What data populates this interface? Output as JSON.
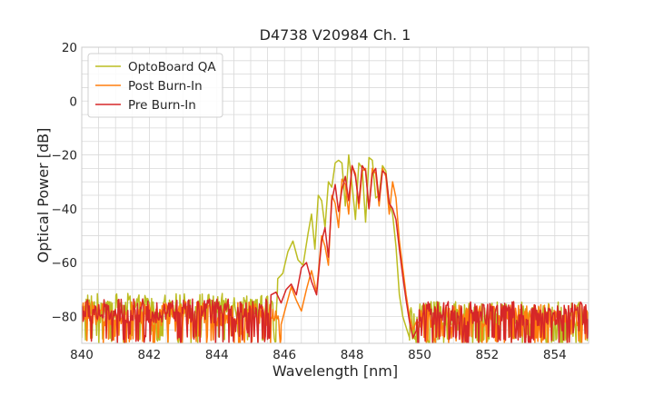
{
  "chart_data": {
    "type": "line",
    "title": "D4738 V20984 Ch. 1",
    "xlabel": "Wavelength [nm]",
    "ylabel": "Optical Power [dB]",
    "xlim": [
      840,
      855
    ],
    "ylim": [
      -90,
      20
    ],
    "x_ticks": [
      840,
      842,
      844,
      846,
      848,
      850,
      852,
      854
    ],
    "y_ticks": [
      20,
      0,
      -20,
      -40,
      -60,
      -80
    ],
    "x_tick_labels": [
      "840",
      "842",
      "844",
      "846",
      "848",
      "850",
      "852",
      "854"
    ],
    "y_tick_labels": [
      "20",
      "0",
      "−20",
      "−40",
      "−60",
      "−80"
    ],
    "x_minor_step": 0.5,
    "y_minor_step": 5,
    "grid": true,
    "legend_position": "top-left",
    "series": [
      {
        "name": "OptoBoard QA",
        "color": "#bcbd22",
        "noise_floor": {
          "x_start": 840.0,
          "x_end": 845.8,
          "mean": -76,
          "min_dip": -90
        },
        "noise_floor_right": {
          "x_start": 849.7,
          "x_end": 855.0,
          "mean": -79,
          "min_dip": -90
        },
        "x": [
          845.8,
          845.95,
          846.1,
          846.25,
          846.4,
          846.55,
          846.7,
          846.8,
          846.9,
          847.0,
          847.1,
          847.2,
          847.3,
          847.4,
          847.5,
          847.6,
          847.7,
          847.8,
          847.9,
          848.0,
          848.1,
          848.2,
          848.3,
          848.4,
          848.5,
          848.6,
          848.7,
          848.8,
          848.9,
          849.0,
          849.1,
          849.2,
          849.3,
          849.4,
          849.5,
          849.6,
          849.7
        ],
        "y": [
          -66,
          -64,
          -56,
          -52,
          -59,
          -61,
          -49,
          -42,
          -55,
          -35,
          -37,
          -47,
          -30,
          -32,
          -23,
          -22,
          -23,
          -39,
          -20,
          -31,
          -44,
          -23,
          -25,
          -45,
          -21,
          -22,
          -36,
          -35,
          -24,
          -26,
          -38,
          -42,
          -54,
          -72,
          -80,
          -84,
          -88
        ]
      },
      {
        "name": "Post Burn-In",
        "color": "#ff7f0e",
        "noise_floor": {
          "x_start": 840.0,
          "x_end": 845.9,
          "mean": -79,
          "min_dip": -90
        },
        "noise_floor_right": {
          "x_start": 850.0,
          "x_end": 855.0,
          "mean": -80,
          "min_dip": -90
        },
        "x": [
          845.9,
          846.05,
          846.2,
          846.35,
          846.5,
          846.65,
          846.8,
          846.95,
          847.1,
          847.2,
          847.3,
          847.4,
          847.5,
          847.6,
          847.7,
          847.8,
          847.9,
          848.0,
          848.1,
          848.2,
          848.3,
          848.4,
          848.5,
          848.6,
          848.7,
          848.8,
          848.9,
          849.0,
          849.1,
          849.2,
          849.3,
          849.4,
          849.5,
          849.6,
          849.7,
          849.8,
          849.9
        ],
        "y": [
          -83,
          -76,
          -69,
          -74,
          -78,
          -70,
          -63,
          -71,
          -50,
          -54,
          -61,
          -35,
          -38,
          -47,
          -29,
          -31,
          -42,
          -24,
          -27,
          -40,
          -26,
          -25,
          -40,
          -25,
          -27,
          -39,
          -25,
          -28,
          -42,
          -30,
          -36,
          -52,
          -62,
          -72,
          -80,
          -85,
          -82
        ]
      },
      {
        "name": "Pre Burn-In",
        "color": "#d62728",
        "noise_floor": {
          "x_start": 840.0,
          "x_end": 845.6,
          "mean": -78,
          "min_dip": -90
        },
        "noise_floor_right": {
          "x_start": 849.9,
          "x_end": 855.0,
          "mean": -79,
          "min_dip": -90
        },
        "x": [
          845.6,
          845.75,
          845.9,
          846.05,
          846.2,
          846.35,
          846.5,
          846.65,
          846.8,
          846.95,
          847.1,
          847.2,
          847.3,
          847.4,
          847.5,
          847.6,
          847.7,
          847.8,
          847.9,
          848.0,
          848.1,
          848.2,
          848.3,
          848.4,
          848.5,
          848.6,
          848.7,
          848.8,
          848.9,
          849.0,
          849.1,
          849.2,
          849.3,
          849.4,
          849.5,
          849.6,
          849.7,
          849.8
        ],
        "y": [
          -72,
          -71,
          -75,
          -70,
          -68,
          -72,
          -62,
          -60,
          -67,
          -72,
          -52,
          -47,
          -58,
          -37,
          -31,
          -41,
          -33,
          -28,
          -37,
          -24,
          -28,
          -38,
          -24,
          -26,
          -40,
          -27,
          -25,
          -37,
          -26,
          -27,
          -38,
          -40,
          -44,
          -55,
          -65,
          -74,
          -82,
          -88
        ]
      }
    ]
  }
}
